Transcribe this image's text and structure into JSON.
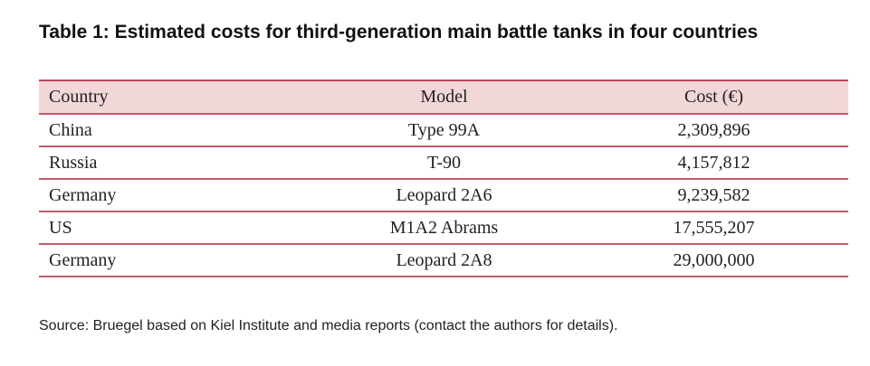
{
  "title": "Table 1: Estimated costs for third-generation main battle tanks in four countries",
  "table": {
    "headers": {
      "country": "Country",
      "model": "Model",
      "cost": "Cost (€)"
    },
    "rows": [
      {
        "country": "China",
        "model": "Type 99A",
        "cost": "2,309,896"
      },
      {
        "country": "Russia",
        "model": "T-90",
        "cost": "4,157,812"
      },
      {
        "country": "Germany",
        "model": "Leopard 2A6",
        "cost": "9,239,582"
      },
      {
        "country": "US",
        "model": "M1A2 Abrams",
        "cost": "17,555,207"
      },
      {
        "country": "Germany",
        "model": "Leopard 2A8",
        "cost": "29,000,000"
      }
    ]
  },
  "source": "Source: Bruegel based on Kiel Institute and media reports (contact the authors for details).",
  "colors": {
    "header_background": "#f2d7d8",
    "rule": "#c25b6a"
  }
}
